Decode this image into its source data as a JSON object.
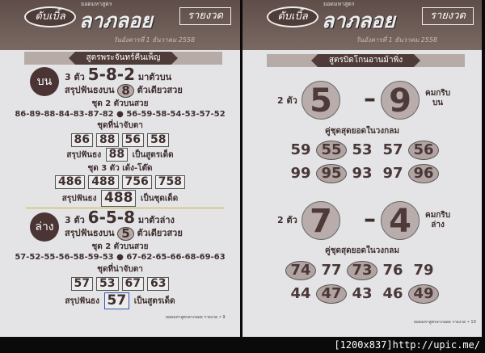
{
  "header": {
    "logo": "ดับเบิ้ล",
    "subtitle": "ยอดมหาสูตร",
    "brand": "ลาภลอย",
    "edition": "รายงวด",
    "date": "วันอังคารที่ 1 ธันวาคม 2558"
  },
  "left": {
    "banner": "สูตรพระจันทร์คืนเพ็ญ",
    "top": {
      "badge": "บน",
      "three_label": "3 ตัว",
      "three": "5-8-2",
      "three_suffix": "มาตัวบน",
      "sum_label": "สรุปฟันธงบน",
      "sum_digit": "8",
      "sum_suffix": "ตัวเดียวสวย",
      "set2_label": "ชุด 2 ตัวบนสวย",
      "set2": "86-89-88-84-83-87-82 ● 56-59-58-54-53-57-52",
      "watch_label": "ชุดที่น่าจับตา",
      "watch": [
        "86",
        "88",
        "56",
        "58"
      ],
      "pick_label": "สรุปฟันธง",
      "pick": "88",
      "pick_suffix": "เป็นสูตรเด็ด",
      "set3_label": "ชุด 3 ตัว เด้ง-โต๊ด",
      "set3": [
        "486",
        "488",
        "756",
        "758"
      ],
      "pick3_label": "สรุปฟันธง",
      "pick3": "488",
      "pick3_suffix": "เป็นชุดเด็ด"
    },
    "bottom": {
      "badge": "ล่าง",
      "three_label": "3 ตัว",
      "three": "6-5-8",
      "three_suffix": "มาตัวล่าง",
      "sum_label": "สรุปฟันธงบน",
      "sum_digit": "5",
      "sum_suffix": "ตัวเดียวสวย",
      "set2_label": "ชุด 2 ตัวบนสวย",
      "set2": "57-52-55-56-58-59-53 ● 67-62-65-66-68-69-63",
      "watch_label": "ชุดที่น่าจับตา",
      "watch": [
        "57",
        "53",
        "67",
        "63"
      ],
      "pick_label": "สรุปฟันธง",
      "pick": "57",
      "pick_suffix": "เป็นสูตรเด็ด"
    },
    "footer": "ยอดมหาสูตรลาภลอย รายงวด",
    "page": "9"
  },
  "right": {
    "banner": "สูตรบิดโกนอานม้าพิ่ง",
    "top": {
      "label": "2 ตัว",
      "d1": "5",
      "d2": "9",
      "note1": "คมกริบ",
      "note2": "บน",
      "pairs_label": "คู่ชุดสุดยอดในวงกลม",
      "row1": [
        "59",
        "55",
        "53",
        "57",
        "56"
      ],
      "row2": [
        "99",
        "95",
        "93",
        "97",
        "96"
      ]
    },
    "bottom": {
      "label": "2 ตัว",
      "d1": "7",
      "d2": "4",
      "note1": "คมกริบ",
      "note2": "ล่าง",
      "pairs_label": "คู่ชุดสุดยอดในวงกลม",
      "row1": [
        "74",
        "77",
        "73",
        "76",
        "79"
      ],
      "row2": [
        "44",
        "47",
        "43",
        "46",
        "49"
      ]
    },
    "footer": "ยอดมหาสูตรลาภลอย รายงวด",
    "page": "10"
  },
  "watermark": "[1200x837]http://upic.me/"
}
